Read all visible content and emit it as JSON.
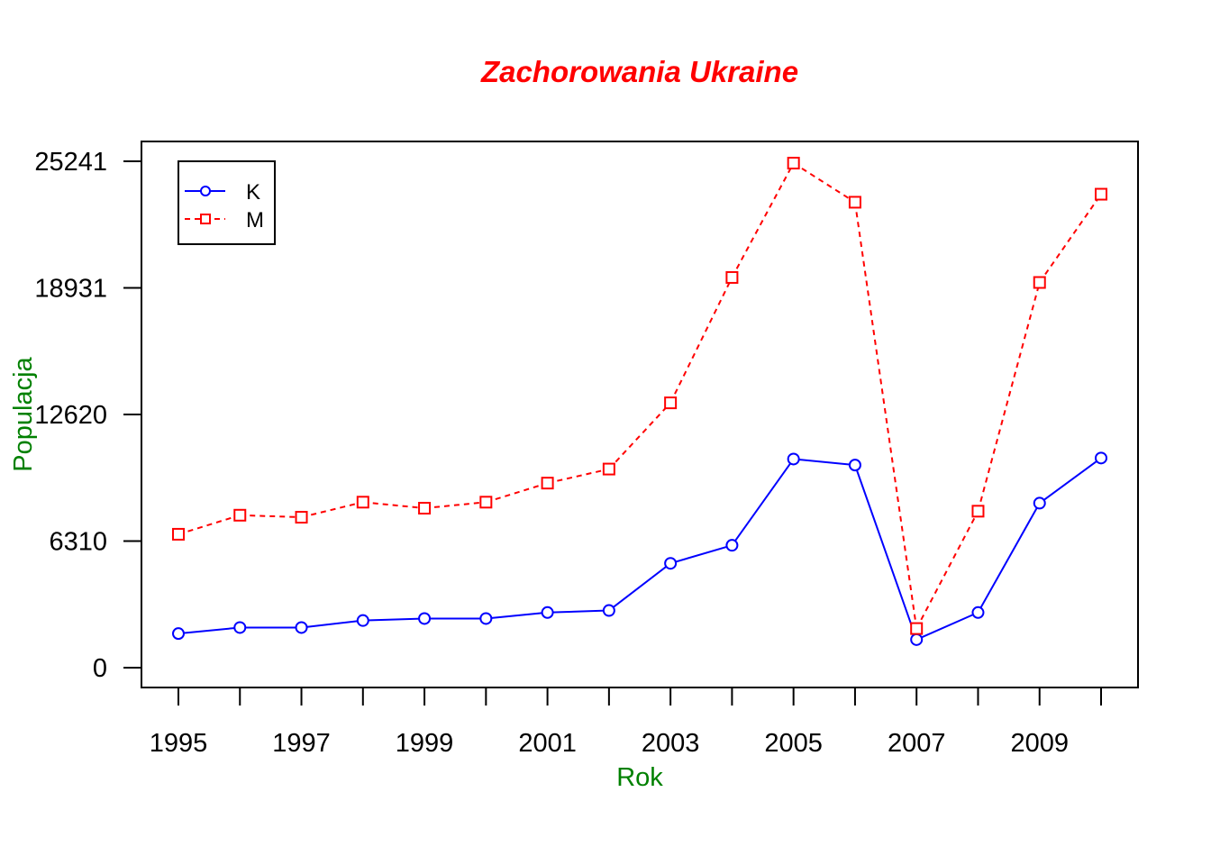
{
  "chart_data": {
    "type": "line",
    "title": "Zachorowania Ukraine",
    "xlabel": "Rok",
    "ylabel": "Populacja",
    "x": [
      1995,
      1996,
      1997,
      1998,
      1999,
      2000,
      2001,
      2002,
      2003,
      2004,
      2005,
      2006,
      2007,
      2008,
      2009,
      2010
    ],
    "xlim": [
      1995,
      2010
    ],
    "ylim": [
      0,
      25241
    ],
    "x_ticks": [
      1995,
      1996,
      1997,
      1998,
      1999,
      2000,
      2001,
      2002,
      2003,
      2004,
      2005,
      2006,
      2007,
      2008,
      2009,
      2010
    ],
    "x_tick_labels": [
      "1995",
      "",
      "1997",
      "",
      "1999",
      "",
      "2001",
      "",
      "2003",
      "",
      "2005",
      "",
      "2007",
      "",
      "2009",
      ""
    ],
    "y_ticks": [
      0,
      6310,
      12620,
      18931,
      25241
    ],
    "y_tick_labels": [
      "0",
      "6310",
      "12620",
      "18931",
      "25241"
    ],
    "grid": false,
    "legend_position": "top-left",
    "series": [
      {
        "name": "K",
        "color": "#0000ff",
        "line_style": "solid",
        "marker": "circle",
        "values": [
          1700,
          2000,
          2000,
          2350,
          2450,
          2450,
          2750,
          2850,
          5200,
          6100,
          10400,
          10100,
          1400,
          2750,
          8200,
          10450
        ]
      },
      {
        "name": "M",
        "color": "#ff0000",
        "line_style": "dashed",
        "marker": "square",
        "values": [
          6650,
          7600,
          7500,
          8250,
          7950,
          8250,
          9200,
          9900,
          13200,
          19450,
          25150,
          23200,
          1950,
          7800,
          19200,
          23600
        ]
      }
    ]
  }
}
